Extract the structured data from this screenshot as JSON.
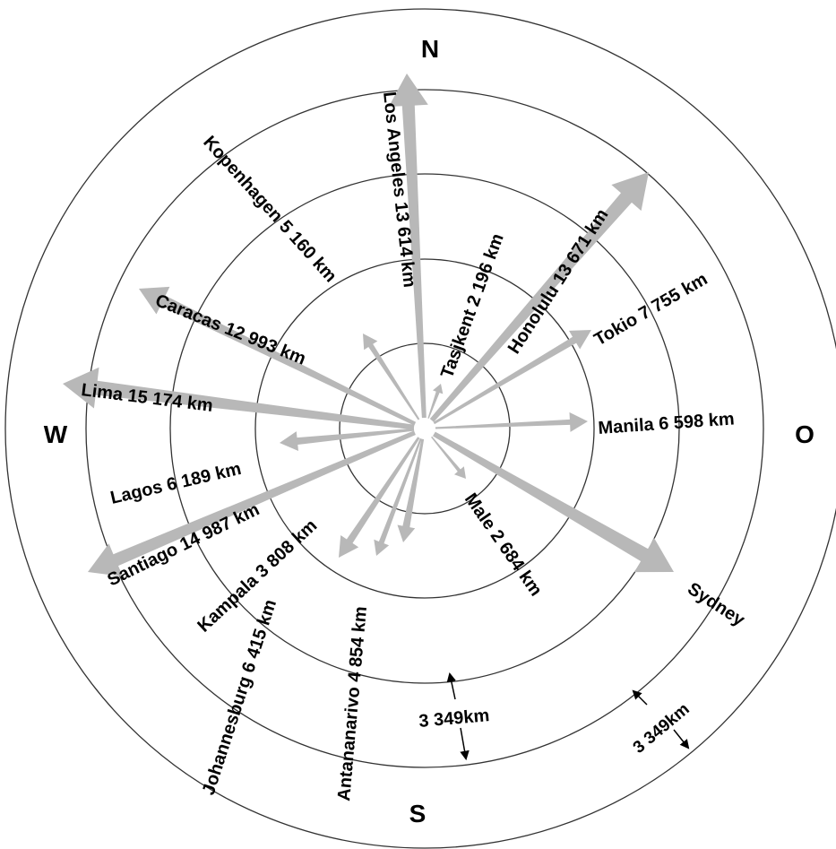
{
  "compass": {
    "north": "N",
    "south": "S",
    "west": "W",
    "east": "O"
  },
  "scale_labels": {
    "inner": "3 349km",
    "outer": "3 349km"
  },
  "colors": {
    "arrow": "#b8b8b8",
    "ring": "#333333",
    "text": "#000000"
  },
  "destinations": [
    {
      "name": "Los Angeles",
      "distance": "13 614 km",
      "text": "Los Angeles 13 614 km"
    },
    {
      "name": "Kopenhagen",
      "distance": "5 160 km",
      "text": "Kopenhagen 5 160 km"
    },
    {
      "name": "Caracas",
      "distance": "12 993 km",
      "text": "Caracas 12 993 km"
    },
    {
      "name": "Lima",
      "distance": "15 174 km",
      "text": "Lima 15 174 km"
    },
    {
      "name": "Lagos",
      "distance": "6 189 km",
      "text": "Lagos 6 189 km"
    },
    {
      "name": "Santiago",
      "distance": "14 987 km",
      "text": "Santiago 14 987 km"
    },
    {
      "name": "Kampala",
      "distance": "3 808 km",
      "text": "Kampala 3 808 km"
    },
    {
      "name": "Johannesburg",
      "distance": "6 415 km",
      "text": "Johannesburg 6 415 km"
    },
    {
      "name": "Antananarivo",
      "distance": "4 854 km",
      "text": "Antananarivo 4 854 km"
    },
    {
      "name": "Male",
      "distance": "2 684 km",
      "text": "Male 2 684 km"
    },
    {
      "name": "Sydney",
      "distance": "",
      "text": "Sydney"
    },
    {
      "name": "Manila",
      "distance": "6 598 km",
      "text": "Manila 6 598 km"
    },
    {
      "name": "Tokio",
      "distance": "7 755 km",
      "text": "Tokio 7 755 km"
    },
    {
      "name": "Honolulu",
      "distance": "13 671 km",
      "text": "Honolulu 13 671 km"
    },
    {
      "name": "Tasjkent",
      "distance": "2 196 km",
      "text": "Tasjkent 2 196 km"
    }
  ]
}
